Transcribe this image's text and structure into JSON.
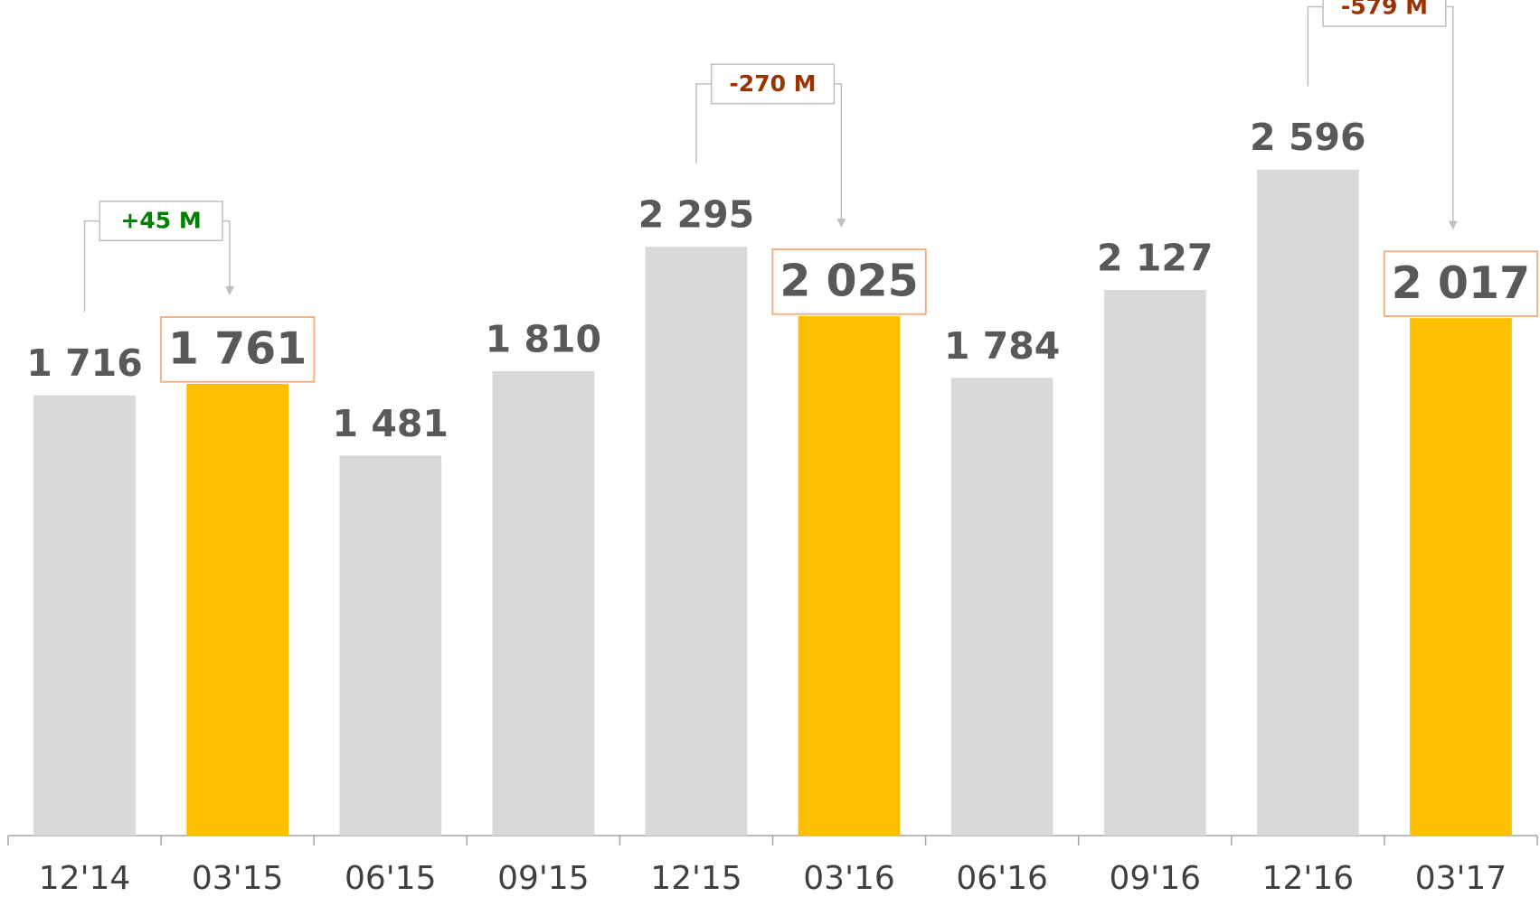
{
  "chart_data": {
    "type": "bar",
    "categories": [
      "12'14",
      "03'15",
      "06'15",
      "09'15",
      "12'15",
      "03'16",
      "06'16",
      "09'16",
      "12'16",
      "03'17"
    ],
    "values": [
      1716,
      1761,
      1481,
      1810,
      2295,
      2025,
      1784,
      2127,
      2596,
      2017
    ],
    "value_labels": [
      "1 716",
      "1 761",
      "1 481",
      "1 810",
      "2 295",
      "2 025",
      "1 784",
      "2 127",
      "2 596",
      "2 017"
    ],
    "colors": [
      "#d9d9d9",
      "#fdc000",
      "#d9d9d9",
      "#d9d9d9",
      "#d9d9d9",
      "#fdc000",
      "#d9d9d9",
      "#d9d9d9",
      "#d9d9d9",
      "#fdc000"
    ],
    "highlight": [
      false,
      true,
      false,
      false,
      false,
      true,
      false,
      false,
      false,
      true
    ],
    "ylim": [
      0,
      3250
    ],
    "annotations": [
      {
        "text": "+45 M",
        "from": "12'14",
        "to": "03'15",
        "color": "#008000"
      },
      {
        "text": "-270 M",
        "from": "12'15",
        "to": "03'16",
        "color": "#993300"
      },
      {
        "text": "-579 M",
        "from": "12'16",
        "to": "03'17",
        "color": "#993300"
      }
    ]
  }
}
